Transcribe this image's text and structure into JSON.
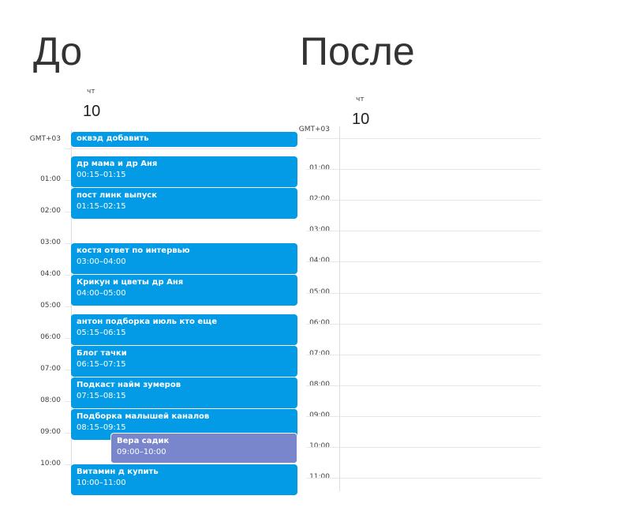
{
  "before": {
    "heading": "До",
    "day_of_week": "чт",
    "day": "10",
    "timezone": "GMT+03",
    "hours": [
      "01:00",
      "02:00",
      "03:00",
      "04:00",
      "05:00",
      "06:00",
      "07:00",
      "08:00",
      "09:00",
      "10:00"
    ],
    "allday_event": "оквэд добавить",
    "events": [
      {
        "title": "др мама и др Аня",
        "time": "00:15–01:15",
        "start": 0.25,
        "color": "#039be5"
      },
      {
        "title": "пост линк выпуск",
        "time": "01:15–02:15",
        "start": 1.25,
        "color": "#039be5"
      },
      {
        "title": "костя ответ по интервью",
        "time": "03:00–04:00",
        "start": 3,
        "color": "#039be5"
      },
      {
        "title": "Крикун и цветы др Аня",
        "time": "04:00–05:00",
        "start": 4,
        "color": "#039be5"
      },
      {
        "title": "антон подборка июль кто еще",
        "time": "05:15–06:15",
        "start": 5.25,
        "color": "#039be5"
      },
      {
        "title": "Блог тачки",
        "time": "06:15–07:15",
        "start": 6.25,
        "color": "#039be5"
      },
      {
        "title": "Подкаст найм зумеров",
        "time": "07:15–08:15",
        "start": 7.25,
        "color": "#039be5"
      },
      {
        "title": "Подборка малышей каналов",
        "time": "08:15–09:15",
        "start": 8.25,
        "color": "#039be5"
      },
      {
        "title": "Вера садик",
        "time": "09:00–10:00",
        "start": 9,
        "color": "#7986cb"
      },
      {
        "title": "Витамин д купить",
        "time": "10:00–11:00",
        "start": 10,
        "color": "#039be5"
      }
    ]
  },
  "after": {
    "heading": "После",
    "day_of_week": "чт",
    "day": "10",
    "timezone": "GMT+03",
    "hours": [
      "01:00",
      "02:00",
      "03:00",
      "04:00",
      "05:00",
      "06:00",
      "07:00",
      "08:00",
      "09:00",
      "10:00",
      "11:00"
    ]
  }
}
